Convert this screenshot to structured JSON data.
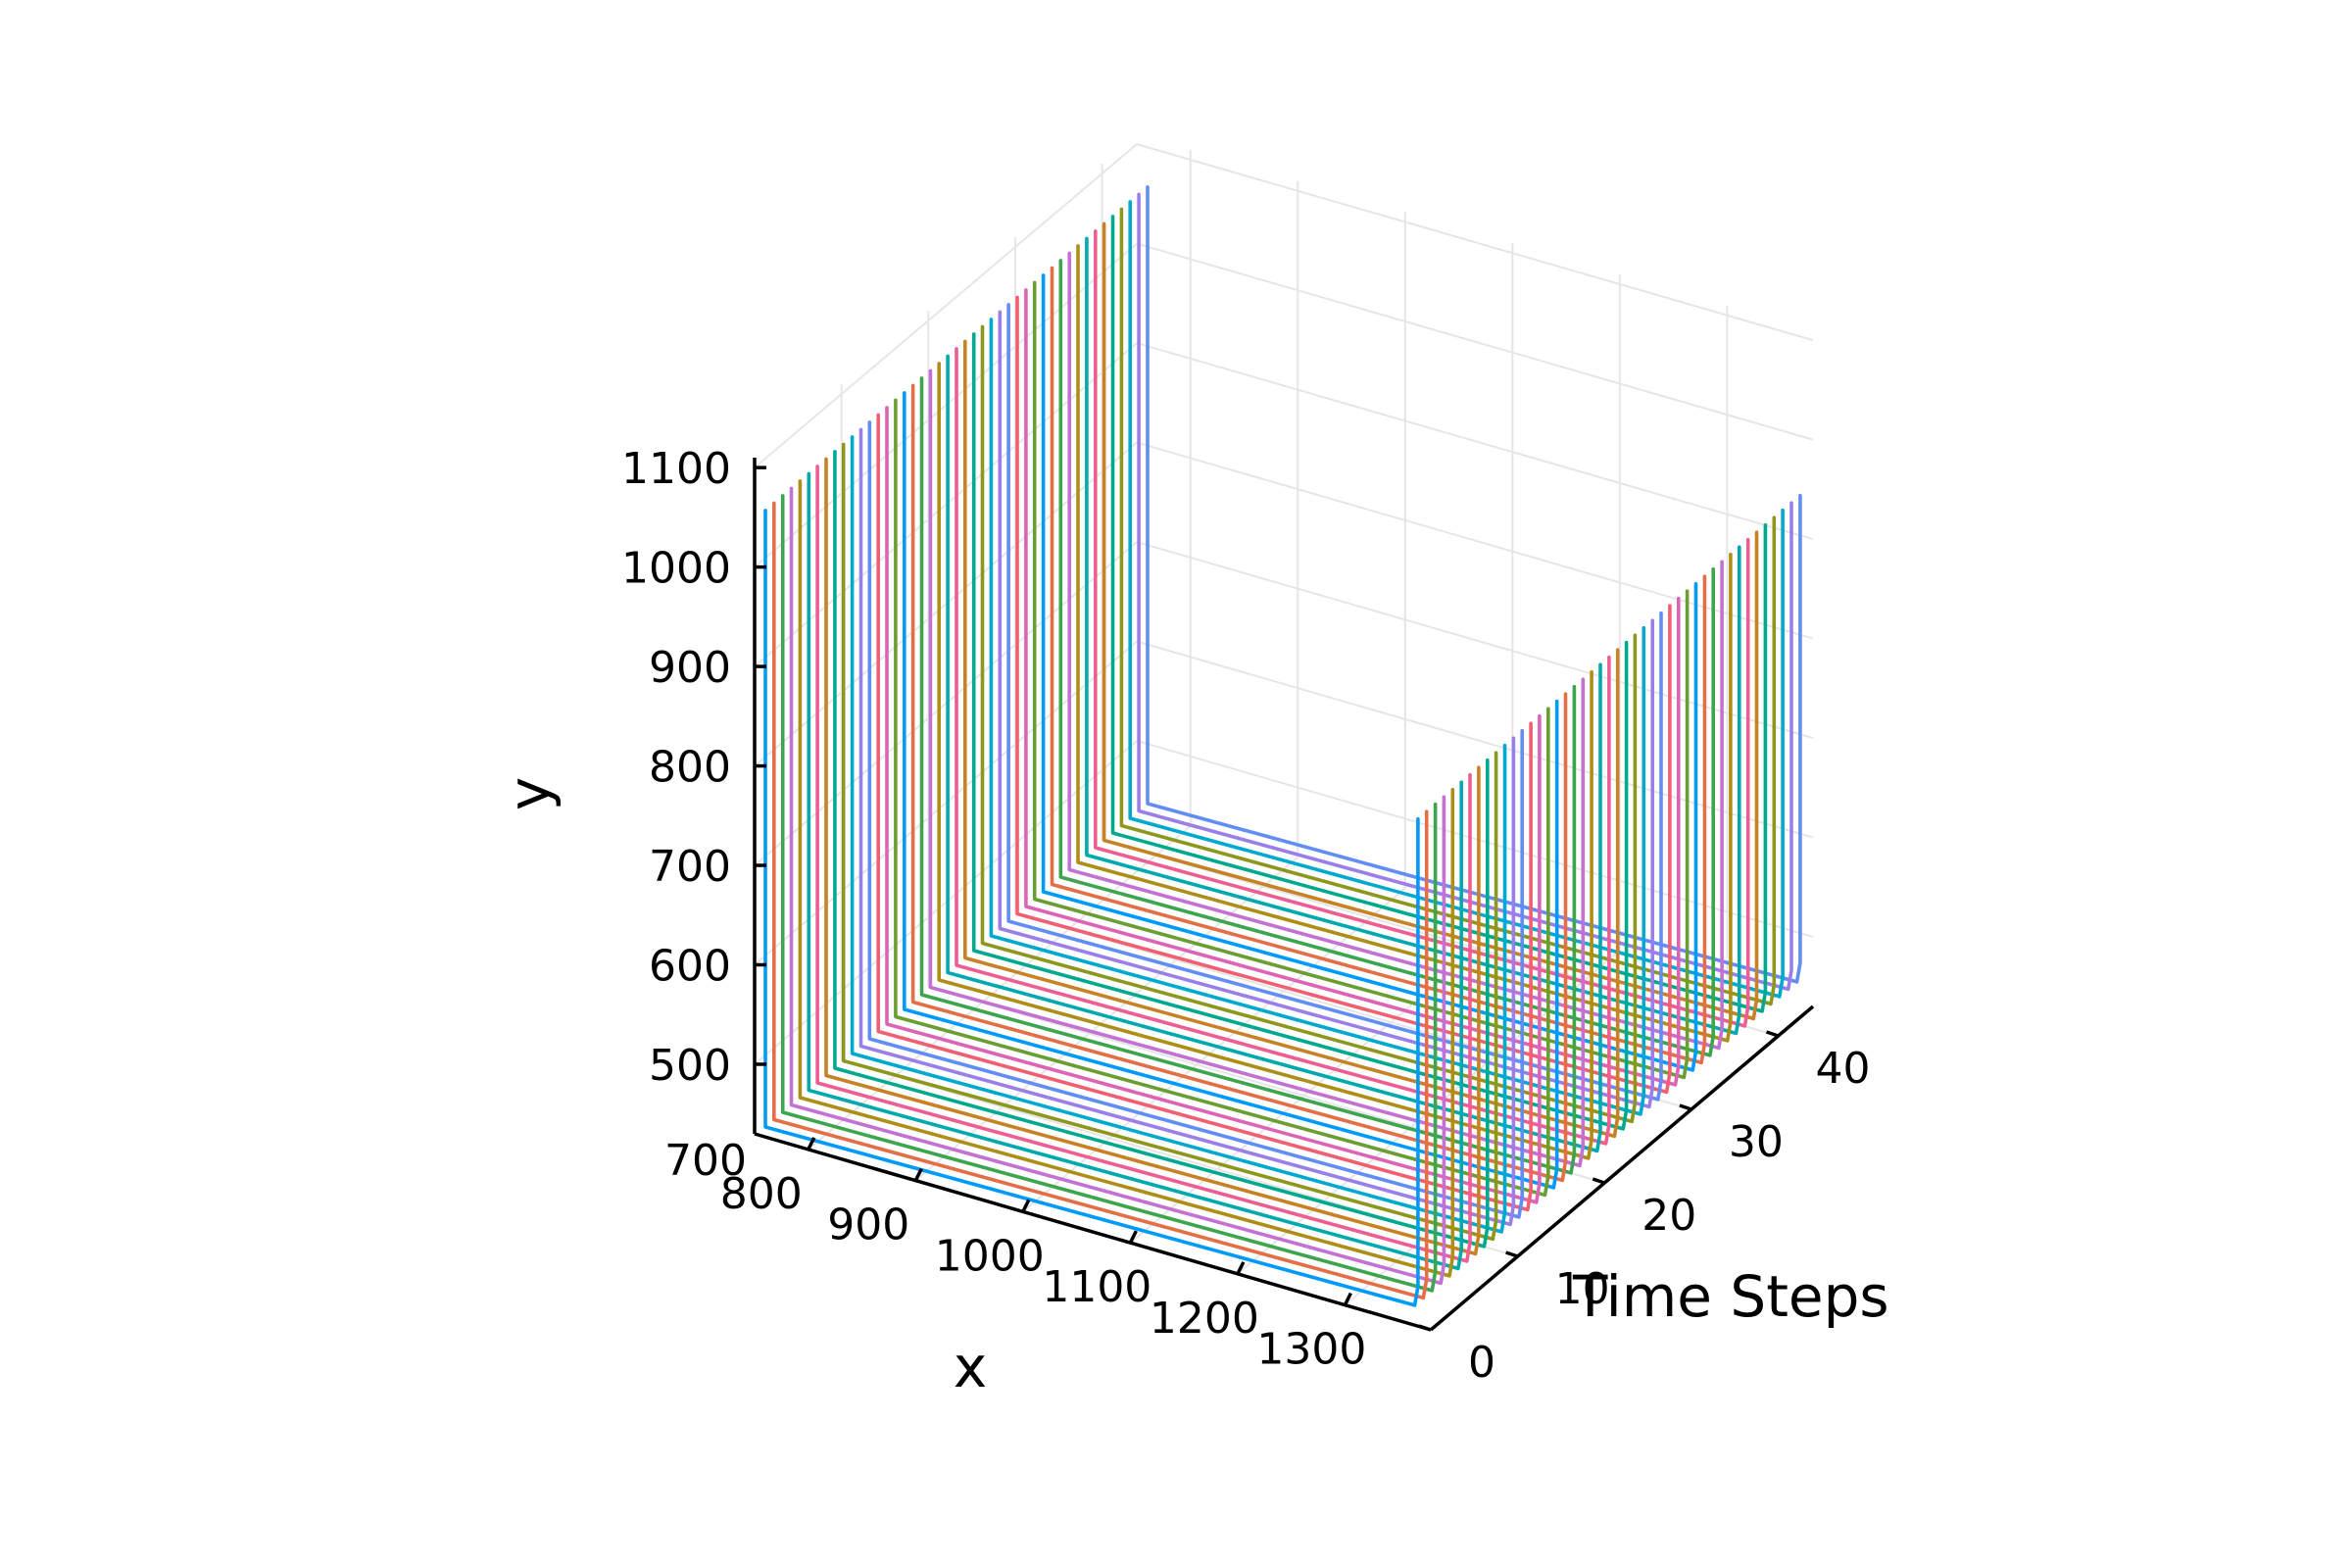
{
  "chart_data": {
    "type": "line",
    "projection": "3d",
    "title": "",
    "xlabel": "x",
    "ylabel": "y",
    "zlabel": "Time Steps",
    "xlim": [
      750,
      1380
    ],
    "ylim": [
      430,
      1110
    ],
    "zlim": [
      0,
      44
    ],
    "x_ticks": [
      700,
      800,
      900,
      1000,
      1100,
      1200,
      1300
    ],
    "x_tick_labels": [
      "700",
      "800",
      "900",
      "1000",
      "1100",
      "1200",
      "1300"
    ],
    "y_ticks": [
      500,
      600,
      700,
      800,
      900,
      1000,
      1100
    ],
    "y_tick_labels": [
      "500",
      "600",
      "700",
      "800",
      "900",
      "1000",
      "1100"
    ],
    "z_ticks": [
      0,
      10,
      20,
      30,
      40
    ],
    "z_tick_labels": [
      "0",
      "10",
      "20",
      "30",
      "40"
    ],
    "grid": true,
    "legend": "none",
    "series_colors": [
      "#009AFA",
      "#E36F47",
      "#3EA44E",
      "#C371D2",
      "#AC8E18",
      "#00A9AD",
      "#ED5E93",
      "#C68225",
      "#00A98D",
      "#8E971D",
      "#00A9CD",
      "#9B7FE9",
      "#618DF6",
      "#F05F73",
      "#DD64B5",
      "#6B9E32"
    ],
    "series_summary": "One closed rounded-square trajectory per time step (0 to 44); each loop spans x approx 760-1370 and y approx 440-1060.",
    "time_steps": [
      0,
      1,
      2,
      3,
      4,
      5,
      6,
      7,
      8,
      9,
      10,
      11,
      12,
      13,
      14,
      15,
      16,
      17,
      18,
      19,
      20,
      21,
      22,
      23,
      24,
      25,
      26,
      27,
      28,
      29,
      30,
      31,
      32,
      33,
      34,
      35,
      36,
      37,
      38,
      39,
      40,
      41,
      42,
      43,
      44
    ],
    "loop_corners": {
      "x": [
        760,
        760,
        760,
        1365,
        1368,
        1368,
        1368
      ],
      "y": [
        1060,
        910,
        440,
        450,
        470,
        910,
        940
      ]
    }
  }
}
